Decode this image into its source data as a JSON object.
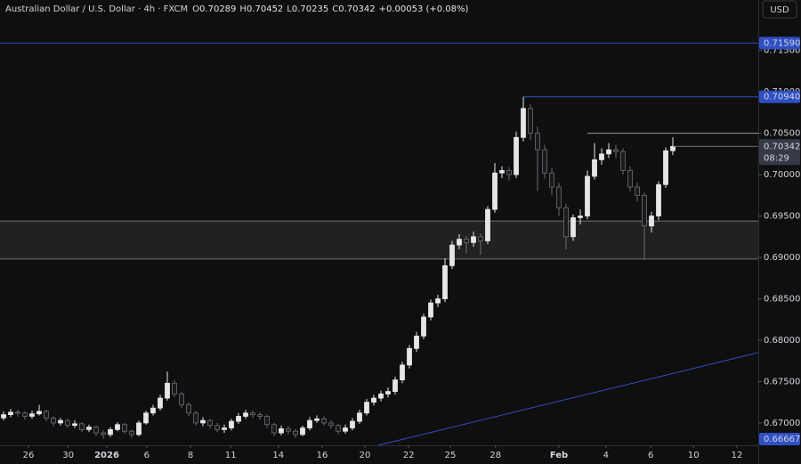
{
  "chart_data": {
    "type": "candlestick",
    "title": "Australian Dollar / U.S. Dollar · 4h · FXCM",
    "ohlc_labels": [
      "O",
      "H",
      "L",
      "C"
    ],
    "ohlc": [
      0.70289,
      0.70452,
      0.70235,
      0.70342
    ],
    "change": "+0.00053 (+0.08%)",
    "currency": "USD",
    "up_color": "#e6e6e6",
    "down_color": "#6b6e78",
    "open": [
      0.6706,
      0.671,
      0.6713,
      0.6712,
      0.6708,
      0.6711,
      0.6714,
      0.6706,
      0.67,
      0.6703,
      0.6697,
      0.6699,
      0.6692,
      0.6695,
      0.6688,
      0.6686,
      0.6692,
      0.6698,
      0.669,
      0.6686,
      0.67,
      0.6712,
      0.6718,
      0.673,
      0.6748,
      0.6735,
      0.6722,
      0.6712,
      0.67,
      0.6703,
      0.6697,
      0.6692,
      0.6694,
      0.6702,
      0.6708,
      0.6712,
      0.671,
      0.6708,
      0.6698,
      0.6688,
      0.6693,
      0.669,
      0.6686,
      0.6694,
      0.6703,
      0.6705,
      0.67,
      0.6697,
      0.669,
      0.6694,
      0.6702,
      0.6712,
      0.6725,
      0.673,
      0.6735,
      0.6738,
      0.6752,
      0.677,
      0.679,
      0.6805,
      0.6828,
      0.6845,
      0.685,
      0.689,
      0.6915,
      0.6922,
      0.6918,
      0.6925,
      0.692,
      0.6958,
      0.7002,
      0.7005,
      0.7,
      0.7045,
      0.708,
      0.705,
      0.703,
      0.7002,
      0.6985,
      0.696,
      0.6925,
      0.6948,
      0.695,
      0.6998,
      0.7018,
      0.7025,
      0.703,
      0.7028,
      0.7005,
      0.6985,
      0.6975,
      0.6938,
      0.695,
      0.6988,
      0.70289
    ],
    "high": [
      0.6714,
      0.6717,
      0.6716,
      0.6714,
      0.6715,
      0.6722,
      0.6716,
      0.6708,
      0.6706,
      0.6705,
      0.6703,
      0.6701,
      0.6698,
      0.6697,
      0.6691,
      0.6695,
      0.6701,
      0.67,
      0.6692,
      0.6703,
      0.6715,
      0.6722,
      0.6734,
      0.6762,
      0.6752,
      0.6738,
      0.6725,
      0.6715,
      0.6707,
      0.6705,
      0.67,
      0.6698,
      0.6705,
      0.6712,
      0.6716,
      0.6715,
      0.6713,
      0.671,
      0.67,
      0.6697,
      0.6696,
      0.6693,
      0.6697,
      0.6707,
      0.6709,
      0.6708,
      0.6703,
      0.6699,
      0.6698,
      0.6706,
      0.6716,
      0.6729,
      0.6734,
      0.6739,
      0.6743,
      0.6756,
      0.6774,
      0.6794,
      0.681,
      0.6832,
      0.6849,
      0.6855,
      0.6899,
      0.692,
      0.6928,
      0.6926,
      0.6931,
      0.6929,
      0.6962,
      0.7014,
      0.701,
      0.7009,
      0.7052,
      0.7094,
      0.7085,
      0.7058,
      0.7036,
      0.7008,
      0.699,
      0.6965,
      0.6952,
      0.6958,
      0.7005,
      0.7038,
      0.7032,
      0.7038,
      0.7036,
      0.7032,
      0.701,
      0.699,
      0.6978,
      0.6955,
      0.6992,
      0.7033,
      0.70452
    ],
    "low": [
      0.6703,
      0.6707,
      0.6708,
      0.6704,
      0.6705,
      0.6709,
      0.6702,
      0.6696,
      0.6697,
      0.6694,
      0.6694,
      0.6689,
      0.6689,
      0.6684,
      0.6681,
      0.6683,
      0.669,
      0.6687,
      0.6682,
      0.6684,
      0.6698,
      0.6709,
      0.6715,
      0.6727,
      0.6731,
      0.6718,
      0.6708,
      0.6697,
      0.6696,
      0.6693,
      0.6689,
      0.6688,
      0.6691,
      0.6699,
      0.6705,
      0.6706,
      0.6704,
      0.6694,
      0.6684,
      0.6685,
      0.6686,
      0.6682,
      0.6684,
      0.6691,
      0.67,
      0.6697,
      0.6693,
      0.6686,
      0.6687,
      0.6691,
      0.6699,
      0.6709,
      0.6721,
      0.6726,
      0.6731,
      0.6734,
      0.6748,
      0.6766,
      0.6786,
      0.6801,
      0.6824,
      0.684,
      0.6846,
      0.6886,
      0.691,
      0.6905,
      0.6913,
      0.6903,
      0.6916,
      0.6954,
      0.6996,
      0.6993,
      0.6996,
      0.704,
      0.7042,
      0.698,
      0.6995,
      0.6975,
      0.695,
      0.691,
      0.692,
      0.694,
      0.6946,
      0.6994,
      0.7012,
      0.702,
      0.702,
      0.7,
      0.698,
      0.6968,
      0.6897,
      0.693,
      0.6945,
      0.6984,
      0.70235
    ],
    "close": [
      0.671,
      0.6713,
      0.6712,
      0.6708,
      0.6711,
      0.6714,
      0.6706,
      0.67,
      0.6703,
      0.6697,
      0.6699,
      0.6692,
      0.6695,
      0.6688,
      0.6686,
      0.6692,
      0.6698,
      0.669,
      0.6686,
      0.67,
      0.6712,
      0.6718,
      0.673,
      0.6748,
      0.6735,
      0.6722,
      0.6712,
      0.67,
      0.6703,
      0.6697,
      0.6692,
      0.6694,
      0.6702,
      0.6708,
      0.6712,
      0.671,
      0.6708,
      0.6698,
      0.6688,
      0.6693,
      0.669,
      0.6686,
      0.6694,
      0.6703,
      0.6705,
      0.67,
      0.6697,
      0.669,
      0.6694,
      0.6702,
      0.6712,
      0.6725,
      0.673,
      0.6735,
      0.6738,
      0.6752,
      0.677,
      0.679,
      0.6805,
      0.6828,
      0.6845,
      0.685,
      0.689,
      0.6915,
      0.6922,
      0.6918,
      0.6925,
      0.692,
      0.6958,
      0.7002,
      0.7005,
      0.7,
      0.7045,
      0.708,
      0.705,
      0.703,
      0.7002,
      0.6985,
      0.696,
      0.6925,
      0.6948,
      0.695,
      0.6998,
      0.7018,
      0.7025,
      0.703,
      0.7028,
      0.7005,
      0.6985,
      0.6975,
      0.6938,
      0.695,
      0.6988,
      0.70289,
      0.70342
    ],
    "xlim": [
      -0.5,
      106
    ],
    "ylim": [
      0.6673,
      0.7211
    ],
    "yticks": [
      {
        "value": 0.715,
        "label": "0.71500"
      },
      {
        "value": 0.71,
        "label": "0.71000"
      },
      {
        "value": 0.705,
        "label": "0.70500"
      },
      {
        "value": 0.7,
        "label": "0.70000"
      },
      {
        "value": 0.695,
        "label": "0.69500"
      },
      {
        "value": 0.69,
        "label": "0.69000"
      },
      {
        "value": 0.685,
        "label": "0.68500"
      },
      {
        "value": 0.68,
        "label": "0.68000"
      },
      {
        "value": 0.675,
        "label": "0.67500"
      },
      {
        "value": 0.67,
        "label": "0.67000"
      }
    ],
    "xticks": [
      {
        "value": 3.5,
        "label": "26"
      },
      {
        "value": 9.1,
        "label": "30"
      },
      {
        "value": 14.5,
        "label": "2026"
      },
      {
        "value": 20.1,
        "label": "6"
      },
      {
        "value": 26.25,
        "label": "8"
      },
      {
        "value": 31.9,
        "label": "11"
      },
      {
        "value": 38.6,
        "label": "14"
      },
      {
        "value": 44.75,
        "label": "16"
      },
      {
        "value": 50.75,
        "label": "20"
      },
      {
        "value": 56.9,
        "label": "22"
      },
      {
        "value": 62.75,
        "label": "25"
      },
      {
        "value": 69.1,
        "label": "28"
      },
      {
        "value": 78,
        "label": "Feb"
      },
      {
        "value": 84.6,
        "label": "4"
      },
      {
        "value": 90.9,
        "label": "6"
      },
      {
        "value": 96.9,
        "label": "10"
      },
      {
        "value": 103,
        "label": "12"
      }
    ],
    "levels": [
      {
        "value": 0.7159,
        "label": "0.71590",
        "from": -0.5,
        "color": "#2f4fc4"
      },
      {
        "value": 0.7094,
        "label": "0.70940",
        "from": 73,
        "color": "#2f4fc4"
      },
      {
        "value": 0.705,
        "from": 82,
        "color": "#9598a1"
      }
    ],
    "zones": [
      {
        "from": 0.6898,
        "to": 0.6944
      }
    ],
    "trendlines": [
      {
        "x": [
          52.6,
          106
        ],
        "y": [
          0.6673,
          0.6785
        ],
        "color": "#2f4fc4",
        "label": {
          "value": 0.66667,
          "label": "0.66667"
        }
      }
    ],
    "last_price": {
      "value": 0.70342,
      "label": "0.70342"
    },
    "countdown": "08:29"
  }
}
